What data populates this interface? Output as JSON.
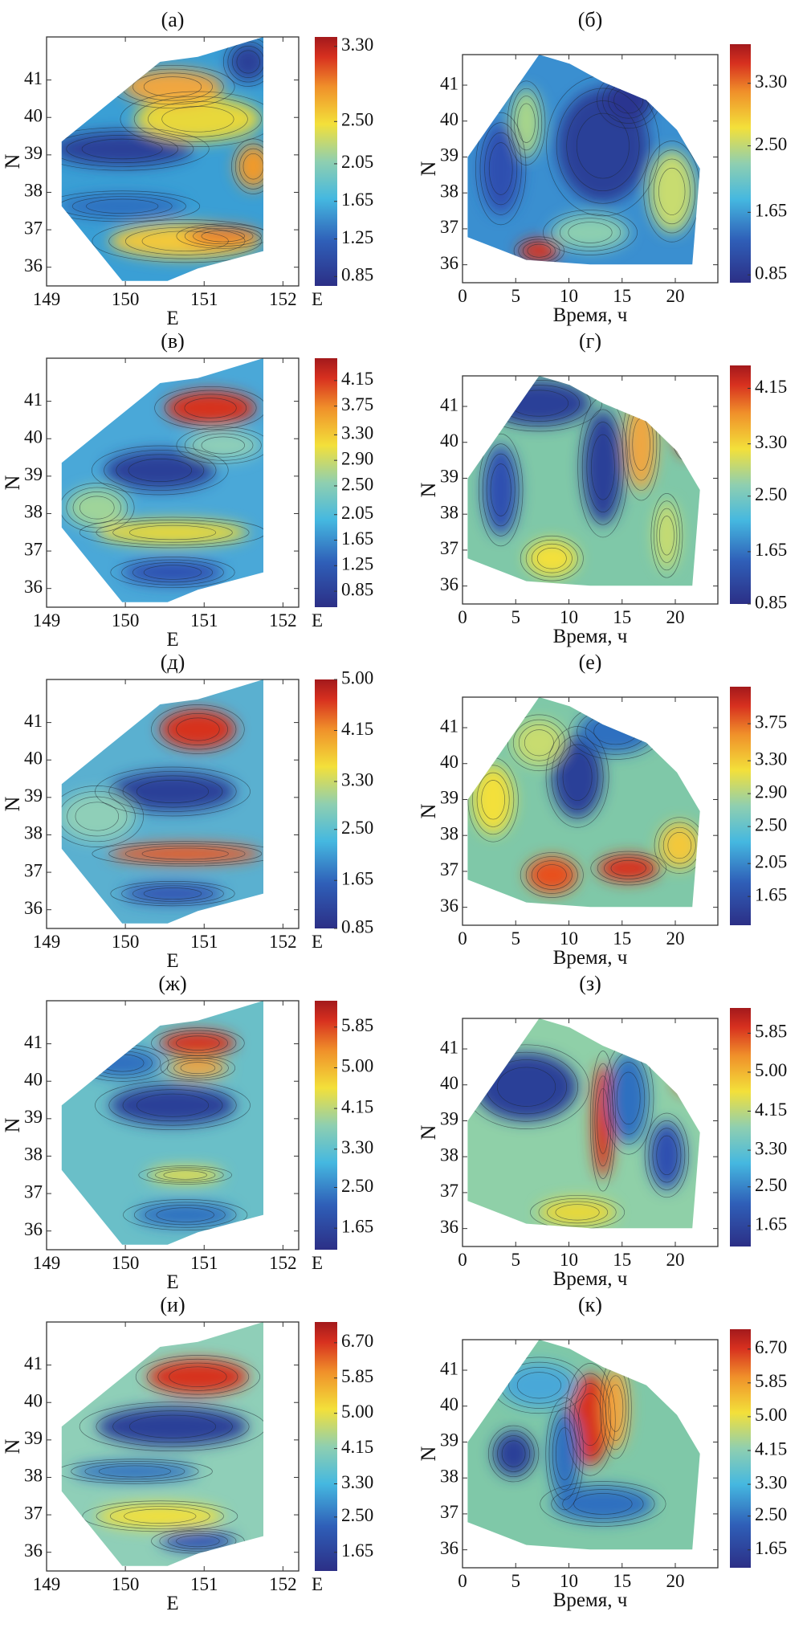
{
  "chart_data": [
    {
      "panel": "(а)",
      "type": "heatmap",
      "xlabel": "E",
      "xlabel_end": "E",
      "ylabel": "N",
      "xticks": [
        "149",
        "150",
        "151",
        "152"
      ],
      "yticks": [
        "36",
        "37",
        "38",
        "39",
        "40",
        "41"
      ],
      "xlim": [
        149,
        152.2
      ],
      "ylim": [
        35.5,
        42.15
      ],
      "colorbar_ticks": [
        "3.30",
        "2.50",
        "2.05",
        "1.65",
        "1.25",
        "0.85"
      ],
      "colorbar_range": [
        0.75,
        3.4
      ]
    },
    {
      "panel": "(б)",
      "type": "heatmap",
      "xlabel": "Время, ч",
      "ylabel": "N",
      "xticks": [
        "0",
        "5",
        "10",
        "15",
        "20"
      ],
      "yticks": [
        "36",
        "37",
        "38",
        "39",
        "40",
        "41"
      ],
      "xlim": [
        0,
        24
      ],
      "ylim": [
        35.5,
        41.85
      ],
      "colorbar_ticks": [
        "3.30",
        "2.50",
        "1.65",
        "0.85"
      ],
      "colorbar_range": [
        0.75,
        3.8
      ]
    },
    {
      "panel": "(в)",
      "type": "heatmap",
      "xlabel": "E",
      "xlabel_end": "E",
      "ylabel": "N",
      "xticks": [
        "149",
        "150",
        "151",
        "152"
      ],
      "yticks": [
        "36",
        "37",
        "38",
        "39",
        "40",
        "41"
      ],
      "xlim": [
        149,
        152.2
      ],
      "ylim": [
        35.5,
        42.15
      ],
      "colorbar_ticks": [
        "4.15",
        "3.75",
        "3.30",
        "2.90",
        "2.50",
        "2.05",
        "1.65",
        "1.25",
        "0.85"
      ],
      "colorbar_range": [
        0.6,
        4.5
      ]
    },
    {
      "panel": "(г)",
      "type": "heatmap",
      "xlabel": "Время, ч",
      "ylabel": "N",
      "xticks": [
        "0",
        "5",
        "10",
        "15",
        "20"
      ],
      "yticks": [
        "36",
        "37",
        "38",
        "39",
        "40",
        "41"
      ],
      "xlim": [
        0,
        24
      ],
      "ylim": [
        35.5,
        41.85
      ],
      "colorbar_ticks": [
        "4.15",
        "3.30",
        "2.50",
        "1.65",
        "0.85"
      ],
      "colorbar_range": [
        0.85,
        4.5
      ]
    },
    {
      "panel": "(д)",
      "type": "heatmap",
      "xlabel": "E",
      "xlabel_end": "E",
      "ylabel": "N",
      "xticks": [
        "149",
        "150",
        "151",
        "152"
      ],
      "yticks": [
        "36",
        "37",
        "38",
        "39",
        "40",
        "41"
      ],
      "xlim": [
        149,
        152.2
      ],
      "ylim": [
        35.5,
        42.15
      ],
      "colorbar_ticks": [
        "5.00",
        "4.15",
        "3.30",
        "2.50",
        "1.65",
        "0.85"
      ],
      "colorbar_range": [
        0.85,
        5.0
      ]
    },
    {
      "panel": "(е)",
      "type": "heatmap",
      "xlabel": "Время, ч",
      "ylabel": "N",
      "xticks": [
        "0",
        "5",
        "10",
        "15",
        "20"
      ],
      "yticks": [
        "36",
        "37",
        "38",
        "39",
        "40",
        "41"
      ],
      "xlim": [
        0,
        24
      ],
      "ylim": [
        35.5,
        41.85
      ],
      "colorbar_ticks": [
        "3.75",
        "3.30",
        "2.90",
        "2.50",
        "2.05",
        "1.65"
      ],
      "colorbar_range": [
        1.3,
        4.2
      ]
    },
    {
      "panel": "(ж)",
      "type": "heatmap",
      "xlabel": "E",
      "xlabel_end": "E",
      "ylabel": "N",
      "xticks": [
        "149",
        "150",
        "151",
        "152"
      ],
      "yticks": [
        "36",
        "37",
        "38",
        "39",
        "40",
        "41"
      ],
      "xlim": [
        149,
        152.2
      ],
      "ylim": [
        35.5,
        42.15
      ],
      "colorbar_ticks": [
        "5.85",
        "5.00",
        "4.15",
        "3.30",
        "2.50",
        "1.65"
      ],
      "colorbar_range": [
        1.2,
        6.4
      ]
    },
    {
      "panel": "(з)",
      "type": "heatmap",
      "xlabel": "Время, ч",
      "ylabel": "N",
      "xticks": [
        "0",
        "5",
        "10",
        "15",
        "20"
      ],
      "yticks": [
        "36",
        "37",
        "38",
        "39",
        "40",
        "41"
      ],
      "xlim": [
        0,
        24
      ],
      "ylim": [
        35.5,
        41.85
      ],
      "colorbar_ticks": [
        "5.85",
        "5.00",
        "4.15",
        "3.30",
        "2.50",
        "1.65"
      ],
      "colorbar_range": [
        1.2,
        6.4
      ]
    },
    {
      "panel": "(и)",
      "type": "heatmap",
      "xlabel": "E",
      "xlabel_end": "E",
      "ylabel": "N",
      "xticks": [
        "149",
        "150",
        "151",
        "152"
      ],
      "yticks": [
        "36",
        "37",
        "38",
        "39",
        "40",
        "41"
      ],
      "xlim": [
        149,
        152.2
      ],
      "ylim": [
        35.5,
        42.15
      ],
      "colorbar_ticks": [
        "6.70",
        "5.85",
        "5.00",
        "4.15",
        "3.30",
        "2.50",
        "1.65"
      ],
      "colorbar_range": [
        1.2,
        7.2
      ]
    },
    {
      "panel": "(к)",
      "type": "heatmap",
      "xlabel": "Время, ч",
      "ylabel": "N",
      "xticks": [
        "0",
        "5",
        "10",
        "15",
        "20"
      ],
      "yticks": [
        "36",
        "37",
        "38",
        "39",
        "40",
        "41"
      ],
      "xlim": [
        0,
        24
      ],
      "ylim": [
        35.5,
        41.85
      ],
      "colorbar_ticks": [
        "6.70",
        "5.85",
        "5.00",
        "4.15",
        "3.30",
        "2.50",
        "1.65"
      ],
      "colorbar_range": [
        1.2,
        7.2
      ]
    }
  ],
  "colors": {
    "jet_low": "#2c2f86",
    "jet_blue": "#2f6fc0",
    "jet_cyan": "#45b8e0",
    "jet_green": "#8fcfb0",
    "jet_yellow": "#f3e03a",
    "jet_orange": "#f0902a",
    "jet_high": "#a3191c"
  }
}
